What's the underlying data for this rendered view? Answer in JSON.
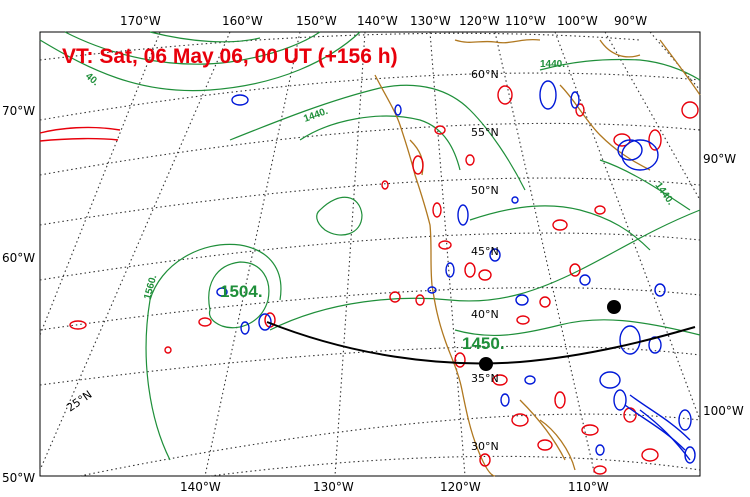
{
  "title": "VT:  Sat, 06 May 06, 00 UT (+156 h)",
  "lon_labels_top": [
    "170°W",
    "160°W",
    "150°W",
    "140°W",
    "130°W",
    "120°W",
    "110°W",
    "100°W",
    "90°W"
  ],
  "lon_labels_bottom": [
    "140°W",
    "130°W",
    "120°W",
    "110°W"
  ],
  "left_labels": [
    "70°W",
    "60°W",
    "50°W"
  ],
  "right_labels": [
    "90°W",
    "100°W"
  ],
  "lat_labels": [
    "60°N",
    "55°N",
    "50°N",
    "45°N",
    "40°N",
    "35°N",
    "30°N",
    "25°N"
  ],
  "contour_labels": [
    "1440.",
    "1440.",
    "1440.",
    "1560.",
    "40."
  ],
  "highlight_labels": [
    "1504.",
    "1450."
  ],
  "colors": {
    "title": "#e8000b",
    "height_contour": "#1f8f3a",
    "coast": "#b07820",
    "positive": "#e8000b",
    "negative": "#0018d8",
    "track": "#000000"
  }
}
